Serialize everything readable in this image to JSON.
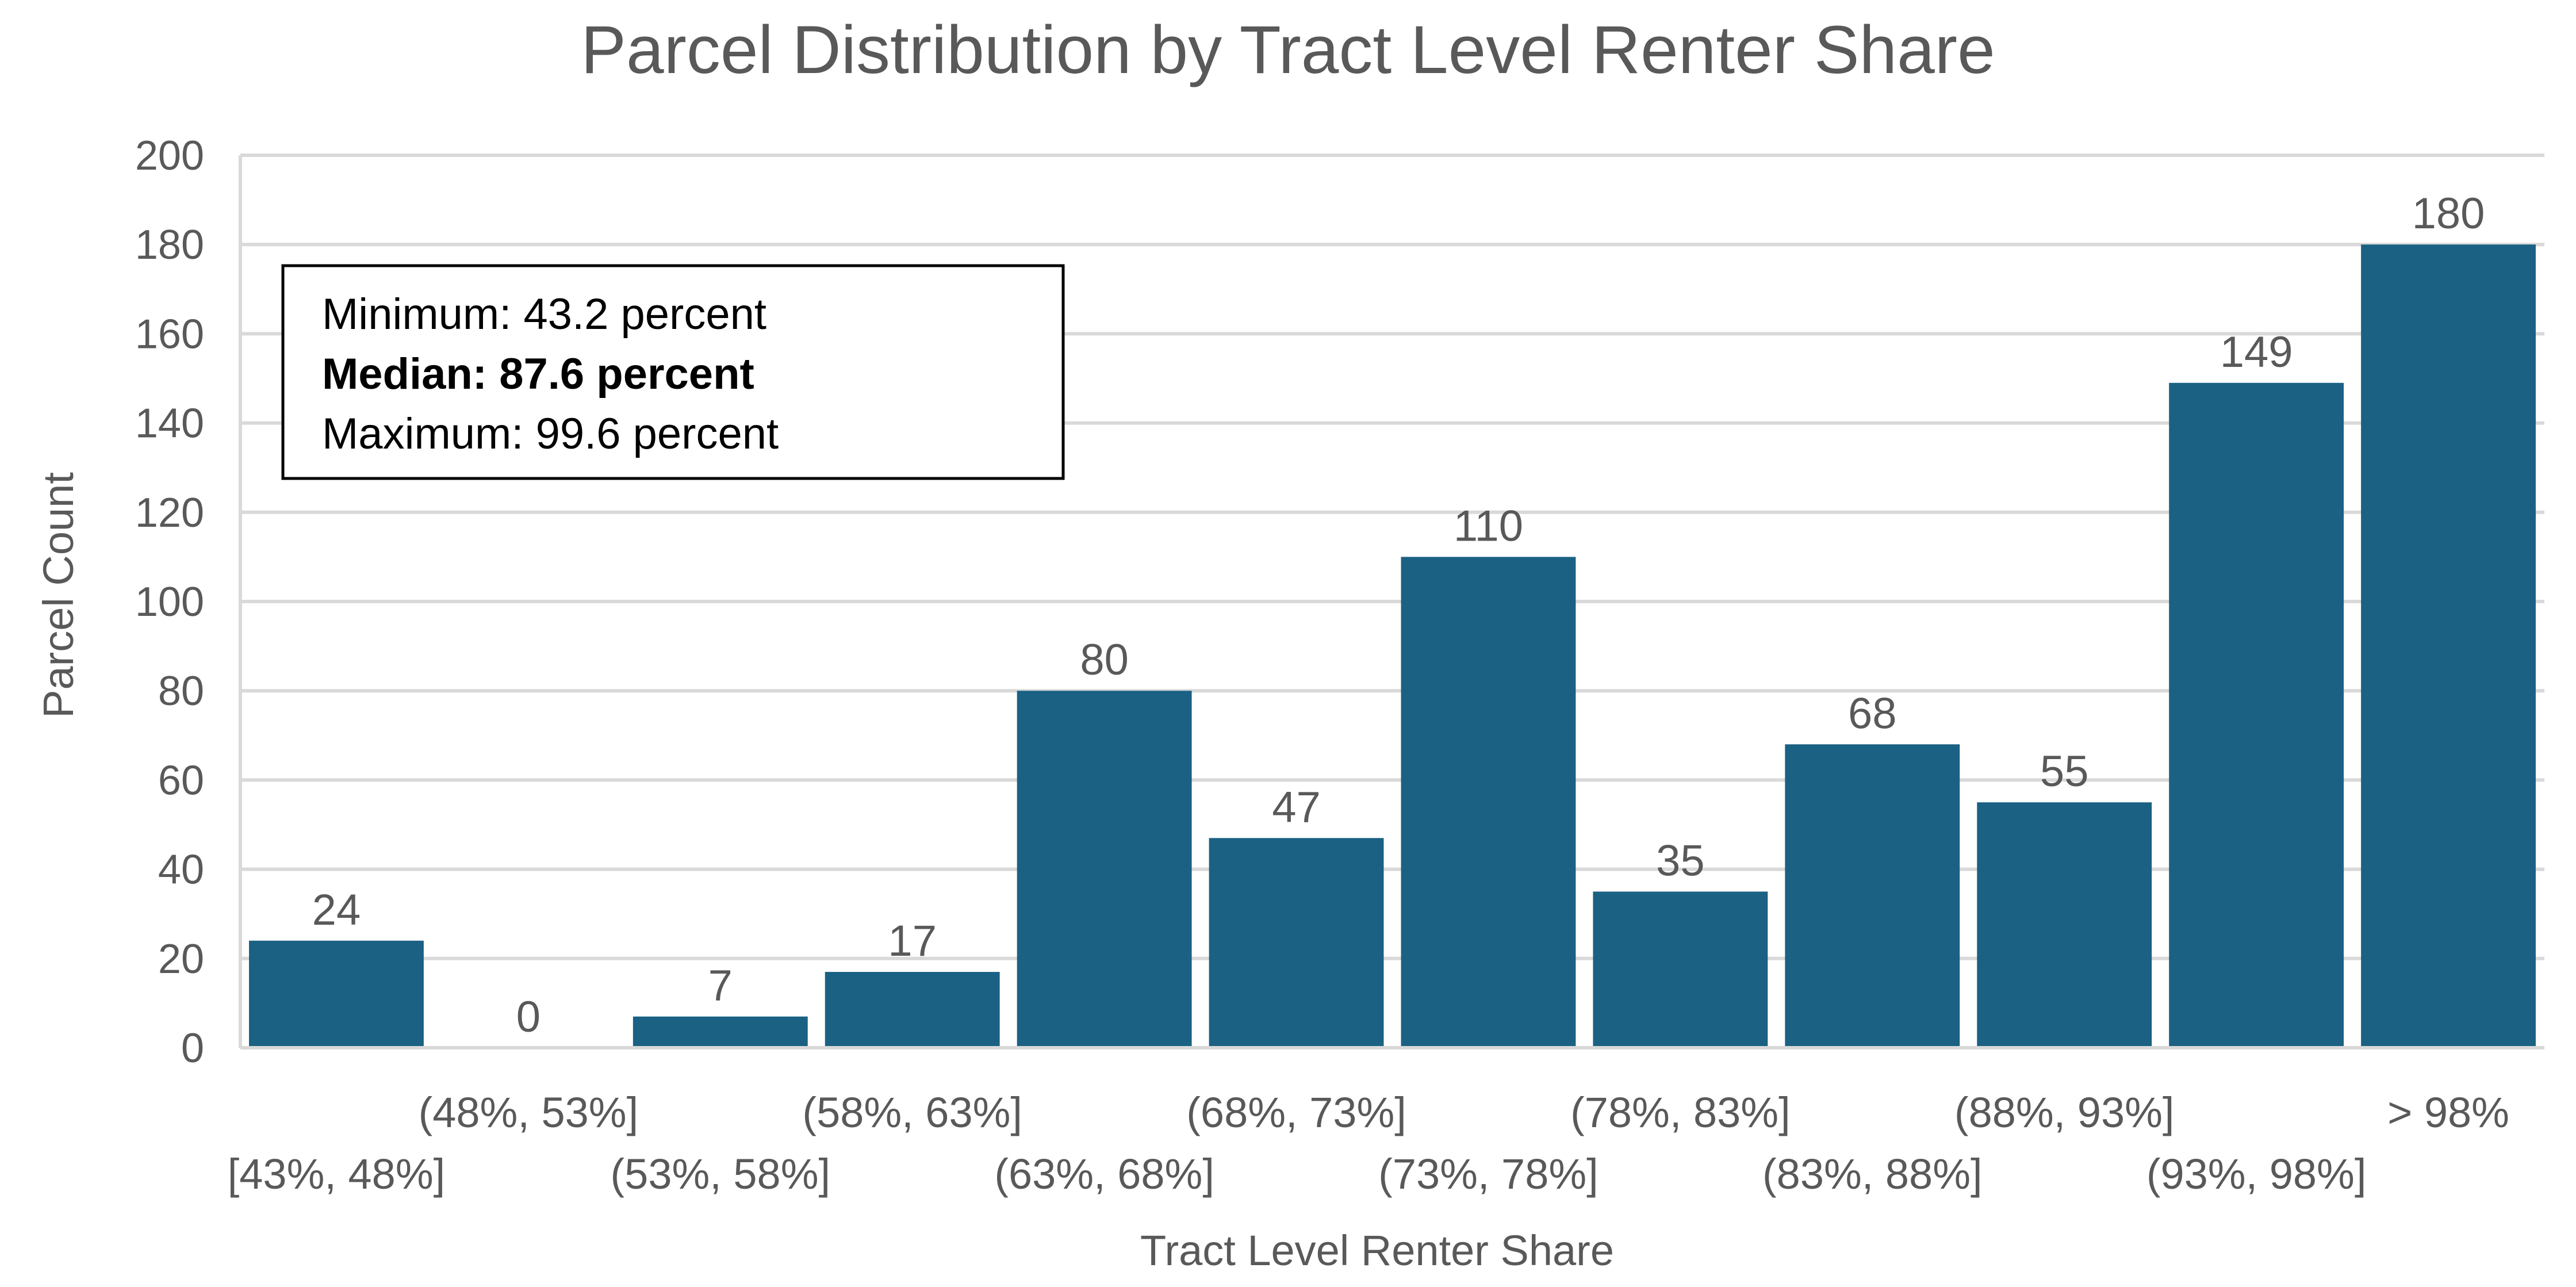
{
  "chart_data": {
    "type": "bar",
    "title": "Parcel Distribution by Tract Level Renter Share",
    "xlabel": "Tract Level Renter Share",
    "ylabel": "Parcel Count",
    "ylim": [
      0,
      200
    ],
    "yticks": [
      0,
      20,
      40,
      60,
      80,
      100,
      120,
      140,
      160,
      180,
      200
    ],
    "grid": true,
    "legend": "none",
    "bar_color": "#1a6184",
    "categories": [
      "[43%, 48%]",
      "(48%, 53%]",
      "(53%, 58%]",
      "(58%, 63%]",
      "(63%, 68%]",
      "(68%, 73%]",
      "(73%, 78%]",
      "(78%, 83%]",
      "(83%, 88%]",
      "(88%, 93%]",
      "(93%, 98%]",
      "> 98%"
    ],
    "values": [
      24,
      0,
      7,
      17,
      80,
      47,
      110,
      35,
      68,
      55,
      149,
      180
    ],
    "data_labels": [
      "24",
      "0",
      "7",
      "17",
      "80",
      "47",
      "110",
      "35",
      "68",
      "55",
      "149",
      "180"
    ],
    "annotation": {
      "lines": [
        {
          "text": "Minimum: 43.2 percent",
          "bold": false
        },
        {
          "text": "Median: 87.6 percent",
          "bold": true
        },
        {
          "text": "Maximum: 99.6 percent",
          "bold": false
        }
      ]
    }
  }
}
